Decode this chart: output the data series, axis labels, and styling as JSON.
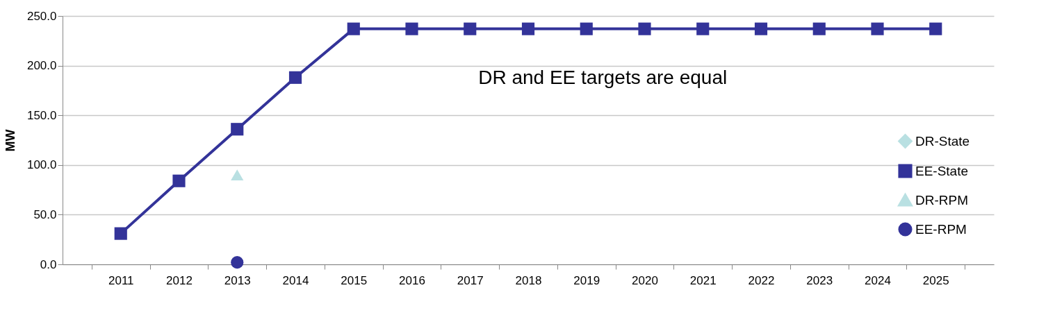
{
  "chart_data": {
    "type": "line",
    "ylabel": "MW",
    "categories": [
      "2011",
      "2012",
      "2013",
      "2014",
      "2015",
      "2016",
      "2017",
      "2018",
      "2019",
      "2020",
      "2021",
      "2022",
      "2023",
      "2024",
      "2025"
    ],
    "series": [
      {
        "name": "DR-State",
        "color": "#b9e0e2",
        "marker": "diamond",
        "values": [
          null,
          null,
          null,
          null,
          null,
          null,
          null,
          null,
          null,
          null,
          null,
          null,
          null,
          null,
          null
        ]
      },
      {
        "name": "EE-State",
        "color": "#333399",
        "marker": "square",
        "values": [
          31,
          84,
          136,
          188,
          237,
          237,
          237,
          237,
          237,
          237,
          237,
          237,
          237,
          237,
          237
        ]
      },
      {
        "name": "DR-RPM",
        "color": "#b9e0e2",
        "marker": "triangle",
        "values": [
          null,
          null,
          90,
          null,
          null,
          null,
          null,
          null,
          null,
          null,
          null,
          null,
          null,
          null,
          null
        ]
      },
      {
        "name": "EE-RPM",
        "color": "#333399",
        "marker": "circle",
        "values": [
          null,
          null,
          2,
          null,
          null,
          null,
          null,
          null,
          null,
          null,
          null,
          null,
          null,
          null,
          null
        ]
      }
    ],
    "ylim": [
      0,
      250
    ],
    "yticks": [
      {
        "value": 0,
        "label": "0.0"
      },
      {
        "value": 50,
        "label": "50.0"
      },
      {
        "value": 100,
        "label": "100.0"
      },
      {
        "value": 150,
        "label": "150.0"
      },
      {
        "value": 200,
        "label": "200.0"
      },
      {
        "value": 250,
        "label": "250.0"
      }
    ],
    "grid": "y",
    "legend": "bottom right",
    "annotations": [
      "DR and EE targets are equal"
    ]
  }
}
